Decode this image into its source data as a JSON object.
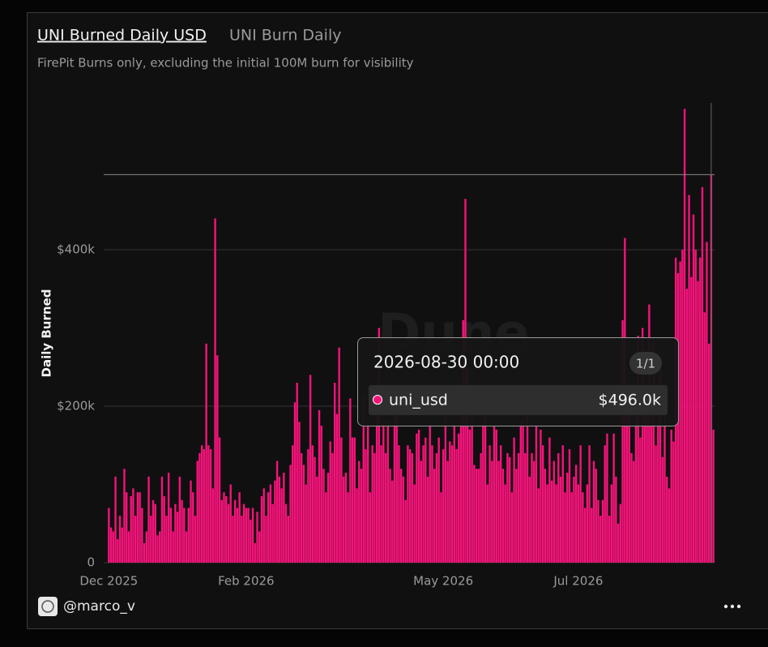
{
  "chart_data": {
    "type": "bar",
    "title": "UNI Burned Daily USD",
    "tab": "UNI Burn Daily",
    "subtitle": "FirePit Burns only, excluding the initial 100M burn for visibility",
    "y_label": "Daily Burned",
    "author": "@marco_v",
    "watermark": "Dune",
    "color": "#f5137a",
    "ylim": [
      0,
      600000
    ],
    "yticks": [
      0,
      {
        "value": 200000,
        "label": "$200k"
      },
      {
        "value": 400000,
        "label": "$400k"
      }
    ],
    "grid": true,
    "xticks": [
      {
        "value": "2025-12-01",
        "label": "Dec 2025"
      },
      {
        "value": "2026-02-01",
        "label": "Feb 2026"
      },
      {
        "value": "2026-05-01",
        "label": "May 2026"
      },
      {
        "value": "2026-07-01",
        "label": "Jul 2026"
      }
    ],
    "tooltip": {
      "x": "2026-08-30 00:00",
      "page": "1/1",
      "series": "uni_usd",
      "value": 496000,
      "value_label": "$496.0k"
    },
    "categories": [
      "2025-12-01",
      "2025-12-02",
      "2025-12-03",
      "2025-12-04",
      "2025-12-05",
      "2025-12-06",
      "2025-12-07",
      "2025-12-08",
      "2025-12-09",
      "2025-12-10",
      "2025-12-11",
      "2025-12-12",
      "2025-12-13",
      "2025-12-14",
      "2025-12-15",
      "2025-12-16",
      "2025-12-17",
      "2025-12-18",
      "2025-12-19",
      "2025-12-20",
      "2025-12-21",
      "2025-12-22",
      "2025-12-23",
      "2025-12-24",
      "2025-12-25",
      "2025-12-26",
      "2025-12-27",
      "2025-12-28",
      "2025-12-29",
      "2025-12-30",
      "2025-12-31",
      "2026-01-01",
      "2026-01-02",
      "2026-01-03",
      "2026-01-04",
      "2026-01-05",
      "2026-01-06",
      "2026-01-07",
      "2026-01-08",
      "2026-01-09",
      "2026-01-10",
      "2026-01-11",
      "2026-01-12",
      "2026-01-13",
      "2026-01-14",
      "2026-01-15",
      "2026-01-16",
      "2026-01-17",
      "2026-01-18",
      "2026-01-19",
      "2026-01-20",
      "2026-01-21",
      "2026-01-22",
      "2026-01-23",
      "2026-01-24",
      "2026-01-25",
      "2026-01-26",
      "2026-01-27",
      "2026-01-28",
      "2026-01-29",
      "2026-01-30",
      "2026-01-31",
      "2026-02-01",
      "2026-02-02",
      "2026-02-03",
      "2026-02-04",
      "2026-02-05",
      "2026-02-06",
      "2026-02-07",
      "2026-02-08",
      "2026-02-09",
      "2026-02-10",
      "2026-02-11",
      "2026-02-12",
      "2026-02-13",
      "2026-02-14",
      "2026-02-15",
      "2026-02-16",
      "2026-02-17",
      "2026-02-18",
      "2026-02-19",
      "2026-02-20",
      "2026-02-21",
      "2026-02-22",
      "2026-02-23",
      "2026-02-24",
      "2026-02-25",
      "2026-02-26",
      "2026-02-27",
      "2026-02-28",
      "2026-03-01",
      "2026-03-02",
      "2026-03-03",
      "2026-03-04",
      "2026-03-05",
      "2026-03-06",
      "2026-03-07",
      "2026-03-08",
      "2026-03-09",
      "2026-03-10",
      "2026-03-11",
      "2026-03-12",
      "2026-03-13",
      "2026-03-14",
      "2026-03-15",
      "2026-03-16",
      "2026-03-17",
      "2026-03-18",
      "2026-03-19",
      "2026-03-20",
      "2026-03-21",
      "2026-03-22",
      "2026-03-23",
      "2026-03-24",
      "2026-03-25",
      "2026-03-26",
      "2026-03-27",
      "2026-03-28",
      "2026-03-29",
      "2026-03-30",
      "2026-03-31",
      "2026-04-01",
      "2026-04-02",
      "2026-04-03",
      "2026-04-04",
      "2026-04-05",
      "2026-04-06",
      "2026-04-07",
      "2026-04-08",
      "2026-04-09",
      "2026-04-10",
      "2026-04-11",
      "2026-04-12",
      "2026-04-13",
      "2026-04-14",
      "2026-04-15",
      "2026-04-16",
      "2026-04-17",
      "2026-04-18",
      "2026-04-19",
      "2026-04-20",
      "2026-04-21",
      "2026-04-22",
      "2026-04-23",
      "2026-04-24",
      "2026-04-25",
      "2026-04-26",
      "2026-04-27",
      "2026-04-28",
      "2026-04-29",
      "2026-04-30",
      "2026-05-01",
      "2026-05-02",
      "2026-05-03",
      "2026-05-04",
      "2026-05-05",
      "2026-05-06",
      "2026-05-07",
      "2026-05-08",
      "2026-05-09",
      "2026-05-10",
      "2026-05-11",
      "2026-05-12",
      "2026-05-13",
      "2026-05-14",
      "2026-05-15",
      "2026-05-16",
      "2026-05-17",
      "2026-05-18",
      "2026-05-19",
      "2026-05-20",
      "2026-05-21",
      "2026-05-22",
      "2026-05-23",
      "2026-05-24",
      "2026-05-25",
      "2026-05-26",
      "2026-05-27",
      "2026-05-28",
      "2026-05-29",
      "2026-05-30",
      "2026-05-31",
      "2026-06-01",
      "2026-06-02",
      "2026-06-03",
      "2026-06-04",
      "2026-06-05",
      "2026-06-06",
      "2026-06-07",
      "2026-06-08",
      "2026-06-09",
      "2026-06-10",
      "2026-06-11",
      "2026-06-12",
      "2026-06-13",
      "2026-06-14",
      "2026-06-15",
      "2026-06-16",
      "2026-06-17",
      "2026-06-18",
      "2026-06-19",
      "2026-06-20",
      "2026-06-21",
      "2026-06-22",
      "2026-06-23",
      "2026-06-24",
      "2026-06-25",
      "2026-06-26",
      "2026-06-27",
      "2026-06-28",
      "2026-06-29",
      "2026-06-30",
      "2026-07-01",
      "2026-07-02",
      "2026-07-03",
      "2026-07-04",
      "2026-07-05",
      "2026-07-06",
      "2026-07-07",
      "2026-07-08",
      "2026-07-09",
      "2026-07-10",
      "2026-07-11",
      "2026-07-12",
      "2026-07-13",
      "2026-07-14",
      "2026-07-15",
      "2026-07-16",
      "2026-07-17",
      "2026-07-18",
      "2026-07-19",
      "2026-07-20",
      "2026-07-21",
      "2026-07-22",
      "2026-07-23",
      "2026-07-24",
      "2026-07-25",
      "2026-07-26",
      "2026-07-27",
      "2026-07-28",
      "2026-07-29",
      "2026-07-30",
      "2026-07-31",
      "2026-08-01",
      "2026-08-02",
      "2026-08-03",
      "2026-08-04",
      "2026-08-05",
      "2026-08-06",
      "2026-08-07",
      "2026-08-08",
      "2026-08-09",
      "2026-08-10",
      "2026-08-11",
      "2026-08-12",
      "2026-08-13",
      "2026-08-14",
      "2026-08-15",
      "2026-08-16",
      "2026-08-17",
      "2026-08-18",
      "2026-08-19",
      "2026-08-20",
      "2026-08-21",
      "2026-08-22",
      "2026-08-23",
      "2026-08-24",
      "2026-08-25",
      "2026-08-26",
      "2026-08-27",
      "2026-08-28",
      "2026-08-29",
      "2026-08-30",
      "2026-08-31"
    ],
    "values": [
      70000,
      45000,
      40000,
      110000,
      30000,
      60000,
      45000,
      120000,
      90000,
      40000,
      85000,
      95000,
      60000,
      90000,
      90000,
      70000,
      25000,
      40000,
      110000,
      60000,
      80000,
      75000,
      35000,
      40000,
      110000,
      85000,
      60000,
      115000,
      70000,
      40000,
      75000,
      65000,
      110000,
      80000,
      70000,
      40000,
      70000,
      105000,
      90000,
      60000,
      130000,
      140000,
      150000,
      145000,
      280000,
      150000,
      145000,
      95000,
      440000,
      265000,
      160000,
      80000,
      90000,
      85000,
      75000,
      100000,
      60000,
      80000,
      70000,
      90000,
      60000,
      75000,
      70000,
      70000,
      55000,
      70000,
      25000,
      65000,
      40000,
      85000,
      95000,
      60000,
      90000,
      100000,
      75000,
      105000,
      130000,
      110000,
      95000,
      115000,
      75000,
      60000,
      125000,
      150000,
      205000,
      230000,
      180000,
      140000,
      125000,
      100000,
      145000,
      240000,
      150000,
      135000,
      110000,
      195000,
      175000,
      120000,
      90000,
      115000,
      155000,
      140000,
      230000,
      190000,
      275000,
      160000,
      110000,
      115000,
      90000,
      210000,
      160000,
      160000,
      95000,
      130000,
      120000,
      215000,
      145000,
      180000,
      90000,
      150000,
      140000,
      225000,
      300000,
      150000,
      180000,
      140000,
      180000,
      120000,
      105000,
      190000,
      200000,
      150000,
      120000,
      110000,
      80000,
      150000,
      145000,
      140000,
      100000,
      165000,
      170000,
      130000,
      150000,
      160000,
      110000,
      180000,
      150000,
      120000,
      140000,
      160000,
      90000,
      145000,
      190000,
      130000,
      155000,
      150000,
      180000,
      145000,
      165000,
      180000,
      310000,
      465000,
      250000,
      170000,
      185000,
      125000,
      120000,
      120000,
      140000,
      180000,
      190000,
      100000,
      150000,
      130000,
      175000,
      170000,
      130000,
      150000,
      120000,
      100000,
      140000,
      135000,
      90000,
      160000,
      120000,
      140000,
      180000,
      180000,
      140000,
      190000,
      110000,
      140000,
      130000,
      180000,
      95000,
      170000,
      150000,
      120000,
      100000,
      160000,
      105000,
      130000,
      100000,
      140000,
      110000,
      150000,
      90000,
      115000,
      145000,
      90000,
      110000,
      125000,
      100000,
      150000,
      90000,
      70000,
      100000,
      150000,
      70000,
      130000,
      120000,
      80000,
      60000,
      80000,
      150000,
      165000,
      60000,
      100000,
      165000,
      110000,
      50000,
      75000,
      310000,
      415000,
      210000,
      190000,
      140000,
      130000,
      185000,
      290000,
      160000,
      300000,
      230000,
      190000,
      330000,
      180000,
      280000,
      150000,
      180000,
      260000,
      135000,
      190000,
      110000,
      95000,
      170000,
      155000,
      390000,
      370000,
      385000,
      400000,
      580000,
      350000,
      470000,
      365000,
      445000,
      400000,
      360000,
      390000,
      480000,
      320000,
      410000,
      280000,
      496000,
      170000
    ]
  }
}
